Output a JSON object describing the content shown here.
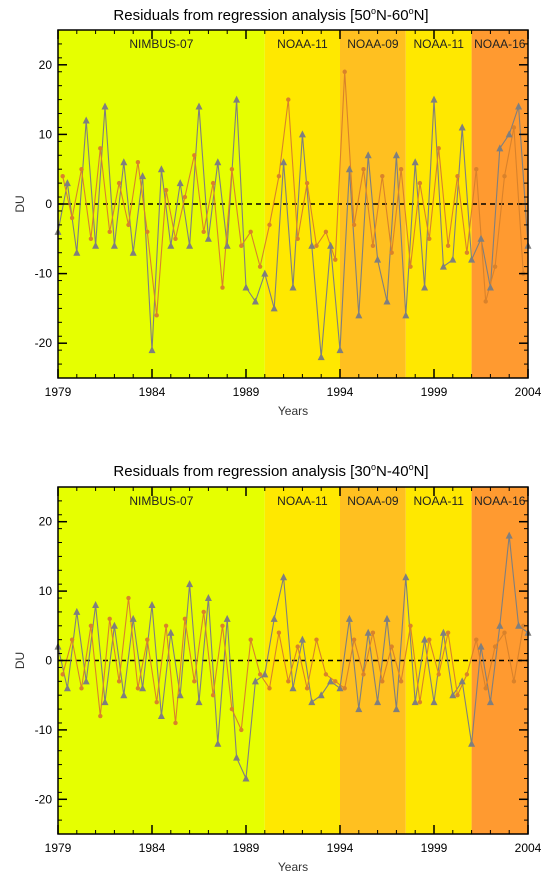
{
  "chart_data": [
    {
      "type": "line",
      "title_prefix": "Residuals from regression analysis [50",
      "title_deg1": "o",
      "title_mid": "N-60",
      "title_deg2": "o",
      "title_suffix": "N]",
      "xlabel": "Years",
      "ylabel": "DU",
      "xlim": [
        1979,
        2004
      ],
      "ylim": [
        -25,
        25
      ],
      "xticks": [
        "1979",
        "1984",
        "1989",
        "1994",
        "1999",
        "2004"
      ],
      "yticks": [
        "-20",
        "-10",
        "0",
        "10",
        "20"
      ],
      "zero_line": "dashed",
      "segments": [
        {
          "label": "NIMBUS-07",
          "start": 1979.0,
          "end": 1990.0,
          "color": "#e6ff00"
        },
        {
          "label": "NOAA-11",
          "start": 1990.0,
          "end": 1994.0,
          "color": "#ffe800"
        },
        {
          "label": "NOAA-09",
          "start": 1994.0,
          "end": 1997.5,
          "color": "#ffc020"
        },
        {
          "label": "NOAA-11",
          "start": 1997.5,
          "end": 2001.0,
          "color": "#ffe800"
        },
        {
          "label": "NOAA-16",
          "start": 2001.0,
          "end": 2004.0,
          "color": "#ff9a30"
        }
      ],
      "series": [
        {
          "color": "#7f7f7f",
          "marker": "triangle",
          "x": [
            1979.0,
            1979.5,
            1980.0,
            1980.5,
            1981.0,
            1981.5,
            1982.0,
            1982.5,
            1983.0,
            1983.5,
            1984.0,
            1984.5,
            1985.0,
            1985.5,
            1986.0,
            1986.5,
            1987.0,
            1987.5,
            1988.0,
            1988.5,
            1989.0,
            1989.5,
            1990.0,
            1990.5,
            1991.0,
            1991.5,
            1992.0,
            1992.5,
            1993.0,
            1993.5,
            1994.0,
            1994.5,
            1995.0,
            1995.5,
            1996.0,
            1996.5,
            1997.0,
            1997.5,
            1998.0,
            1998.5,
            1999.0,
            1999.5,
            2000.0,
            2000.5,
            2001.0,
            2001.5,
            2002.0,
            2002.5,
            2003.0,
            2003.5,
            2004.0
          ],
          "y": [
            -4,
            3,
            -7,
            12,
            -6,
            14,
            -6,
            6,
            -7,
            4,
            -21,
            5,
            -6,
            3,
            -6,
            14,
            -5,
            6,
            -6,
            15,
            -12,
            -14,
            -10,
            -15,
            6,
            -12,
            10,
            -6,
            -22,
            -6,
            -21,
            5,
            -16,
            7,
            -8,
            -14,
            7,
            -16,
            6,
            -12,
            15,
            -9,
            -8,
            11,
            -8,
            -5,
            -12,
            8,
            10,
            14,
            -6
          ]
        },
        {
          "color": "#d9822b",
          "marker": "circle",
          "x": [
            1979.25,
            1979.75,
            1980.25,
            1980.75,
            1981.25,
            1981.75,
            1982.25,
            1982.75,
            1983.25,
            1983.75,
            1984.25,
            1984.75,
            1985.25,
            1985.75,
            1986.25,
            1986.75,
            1987.25,
            1987.75,
            1988.25,
            1988.75,
            1989.25,
            1989.75,
            1990.25,
            1990.75,
            1991.25,
            1991.75,
            1992.25,
            1992.75,
            1993.25,
            1993.75,
            1994.25,
            1994.75,
            1995.25,
            1995.75,
            1996.25,
            1996.75,
            1997.25,
            1997.75,
            1998.25,
            1998.75,
            1999.25,
            1999.75,
            2000.25,
            2000.75,
            2001.25,
            2001.75,
            2002.25,
            2002.75,
            2003.25,
            2003.75
          ],
          "y": [
            4,
            -2,
            5,
            -5,
            8,
            -4,
            3,
            -3,
            6,
            -4,
            -16,
            2,
            -5,
            1,
            7,
            -4,
            3,
            -12,
            5,
            -6,
            -4,
            -9,
            -3,
            4,
            15,
            -5,
            3,
            -6,
            -4,
            -8,
            19,
            -3,
            5,
            -6,
            4,
            -7,
            5,
            -9,
            3,
            -5,
            8,
            -6,
            4,
            -7,
            5,
            -14,
            -9,
            4,
            11,
            -10
          ]
        }
      ]
    },
    {
      "type": "line",
      "title_prefix": "Residuals from regression analysis [30",
      "title_deg1": "o",
      "title_mid": "N-40",
      "title_deg2": "o",
      "title_suffix": "N]",
      "xlabel": "Years",
      "ylabel": "DU",
      "xlim": [
        1979,
        2004
      ],
      "ylim": [
        -25,
        25
      ],
      "xticks": [
        "1979",
        "1984",
        "1989",
        "1994",
        "1999",
        "2004"
      ],
      "yticks": [
        "-20",
        "-10",
        "0",
        "10",
        "20"
      ],
      "zero_line": "dashed",
      "segments": [
        {
          "label": "NIMBUS-07",
          "start": 1979.0,
          "end": 1990.0,
          "color": "#e6ff00"
        },
        {
          "label": "NOAA-11",
          "start": 1990.0,
          "end": 1994.0,
          "color": "#ffe800"
        },
        {
          "label": "NOAA-09",
          "start": 1994.0,
          "end": 1997.5,
          "color": "#ffc020"
        },
        {
          "label": "NOAA-11",
          "start": 1997.5,
          "end": 2001.0,
          "color": "#ffe800"
        },
        {
          "label": "NOAA-16",
          "start": 2001.0,
          "end": 2004.0,
          "color": "#ff9a30"
        }
      ],
      "series": [
        {
          "color": "#7f7f7f",
          "marker": "triangle",
          "x": [
            1979.0,
            1979.5,
            1980.0,
            1980.5,
            1981.0,
            1981.5,
            1982.0,
            1982.5,
            1983.0,
            1983.5,
            1984.0,
            1984.5,
            1985.0,
            1985.5,
            1986.0,
            1986.5,
            1987.0,
            1987.5,
            1988.0,
            1988.5,
            1989.0,
            1989.5,
            1990.0,
            1990.5,
            1991.0,
            1991.5,
            1992.0,
            1992.5,
            1993.0,
            1993.5,
            1994.0,
            1994.5,
            1995.0,
            1995.5,
            1996.0,
            1996.5,
            1997.0,
            1997.5,
            1998.0,
            1998.5,
            1999.0,
            1999.5,
            2000.0,
            2000.5,
            2001.0,
            2001.5,
            2002.0,
            2002.5,
            2003.0,
            2003.5,
            2004.0
          ],
          "y": [
            2,
            -4,
            7,
            -3,
            8,
            -6,
            5,
            -5,
            6,
            -4,
            8,
            -8,
            4,
            -5,
            11,
            -6,
            9,
            -12,
            6,
            -14,
            -17,
            -3,
            -2,
            6,
            12,
            -4,
            3,
            -6,
            -5,
            -3,
            -4,
            6,
            -7,
            4,
            -6,
            6,
            -7,
            12,
            -6,
            3,
            -6,
            4,
            -5,
            -3,
            -12,
            2,
            -6,
            5,
            18,
            5,
            4
          ]
        },
        {
          "color": "#d9822b",
          "marker": "circle",
          "x": [
            1979.25,
            1979.75,
            1980.25,
            1980.75,
            1981.25,
            1981.75,
            1982.25,
            1982.75,
            1983.25,
            1983.75,
            1984.25,
            1984.75,
            1985.25,
            1985.75,
            1986.25,
            1986.75,
            1987.25,
            1987.75,
            1988.25,
            1988.75,
            1989.25,
            1989.75,
            1990.25,
            1990.75,
            1991.25,
            1991.75,
            1992.25,
            1992.75,
            1993.25,
            1993.75,
            1994.25,
            1994.75,
            1995.25,
            1995.75,
            1996.25,
            1996.75,
            1997.25,
            1997.75,
            1998.25,
            1998.75,
            1999.25,
            1999.75,
            2000.25,
            2000.75,
            2001.25,
            2001.75,
            2002.25,
            2002.75,
            2003.25,
            2003.75
          ],
          "y": [
            -2,
            3,
            -4,
            5,
            -8,
            6,
            -3,
            9,
            -4,
            3,
            -6,
            5,
            -9,
            6,
            -3,
            7,
            -5,
            5,
            -7,
            -10,
            3,
            -2,
            -4,
            4,
            -3,
            2,
            -4,
            3,
            -2,
            -3,
            -4,
            3,
            -2,
            4,
            -3,
            2,
            -3,
            5,
            -6,
            3,
            -2,
            4,
            -5,
            -2,
            3,
            -4,
            2,
            4,
            -3,
            5
          ]
        }
      ]
    }
  ]
}
